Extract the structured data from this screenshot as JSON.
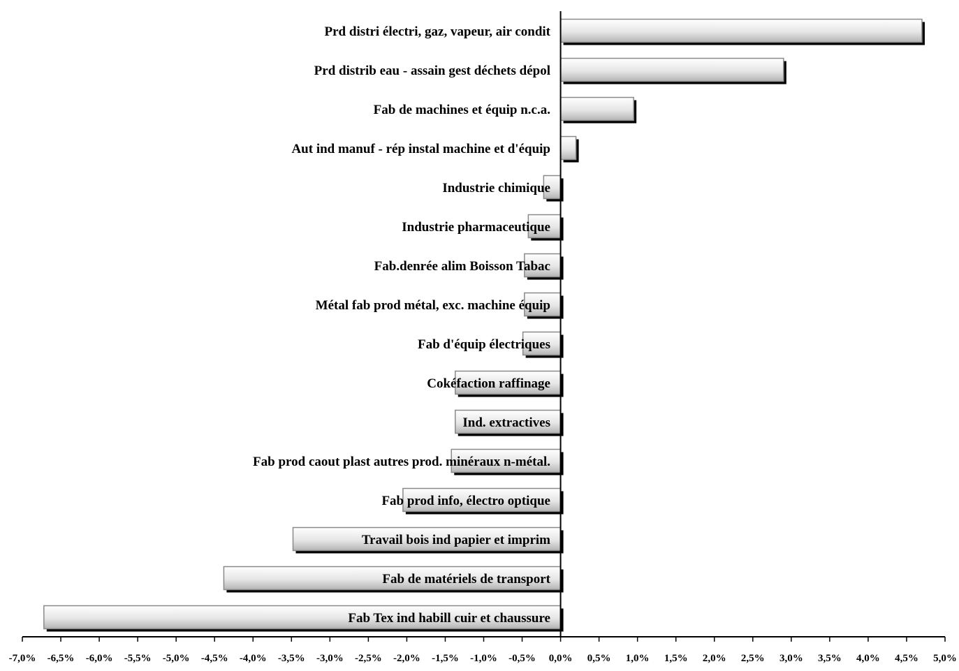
{
  "chart_data": {
    "type": "bar",
    "orientation": "horizontal",
    "title": "",
    "xlabel": "",
    "ylabel": "",
    "categories": [
      "Prd distri électri, gaz, vapeur, air condit",
      "Prd distrib eau - assain gest déchets dépol",
      "Fab de machines et équip n.c.a.",
      "Aut ind manuf - rép instal machine et d'équip",
      "Industrie chimique",
      "Industrie pharmaceutique",
      "Fab.denrée alim Boisson Tabac",
      "Métal fab prod métal, exc. machine équip",
      "Fab d'équip électriques",
      "Cokéfaction raffinage",
      "Ind. extractives",
      "Fab prod caout plast autres prod. minéraux n-métal.",
      "Fab prod info, électro optique",
      "Travail bois ind papier et imprim",
      "Fab de matériels de transport",
      "Fab Tex ind habill cuir et chaussure"
    ],
    "values": [
      4.7,
      2.9,
      0.95,
      0.2,
      -0.22,
      -0.42,
      -0.47,
      -0.47,
      -0.49,
      -1.37,
      -1.37,
      -1.42,
      -2.05,
      -3.48,
      -4.38,
      -6.72
    ],
    "xlim": [
      -7.0,
      5.0
    ],
    "xticks": [
      "-7,0%",
      "-6,5%",
      "-6,0%",
      "-5,5%",
      "-5,0%",
      "-4,5%",
      "-4,0%",
      "-3,5%",
      "-3,0%",
      "-2,5%",
      "-2,0%",
      "-1,5%",
      "-1,0%",
      "-0,5%",
      "0,0%",
      "0,5%",
      "1,0%",
      "1,5%",
      "2,0%",
      "2,5%",
      "3,0%",
      "3,5%",
      "4,0%",
      "4,5%",
      "5,0%"
    ],
    "xtick_values": [
      -7.0,
      -6.5,
      -6.0,
      -5.5,
      -5.0,
      -4.5,
      -4.0,
      -3.5,
      -3.0,
      -2.5,
      -2.0,
      -1.5,
      -1.0,
      -0.5,
      0.0,
      0.5,
      1.0,
      1.5,
      2.0,
      2.5,
      3.0,
      3.5,
      4.0,
      4.5,
      5.0
    ],
    "grid": false,
    "legend": "none",
    "colors": {
      "bar_light": "#ffffff",
      "bar_mid": "#e6e6e6",
      "bar_dark": "#b4b4b4",
      "bar_stroke": "#8a8a8a",
      "shadow": "#000000",
      "axis": "#000000"
    }
  }
}
